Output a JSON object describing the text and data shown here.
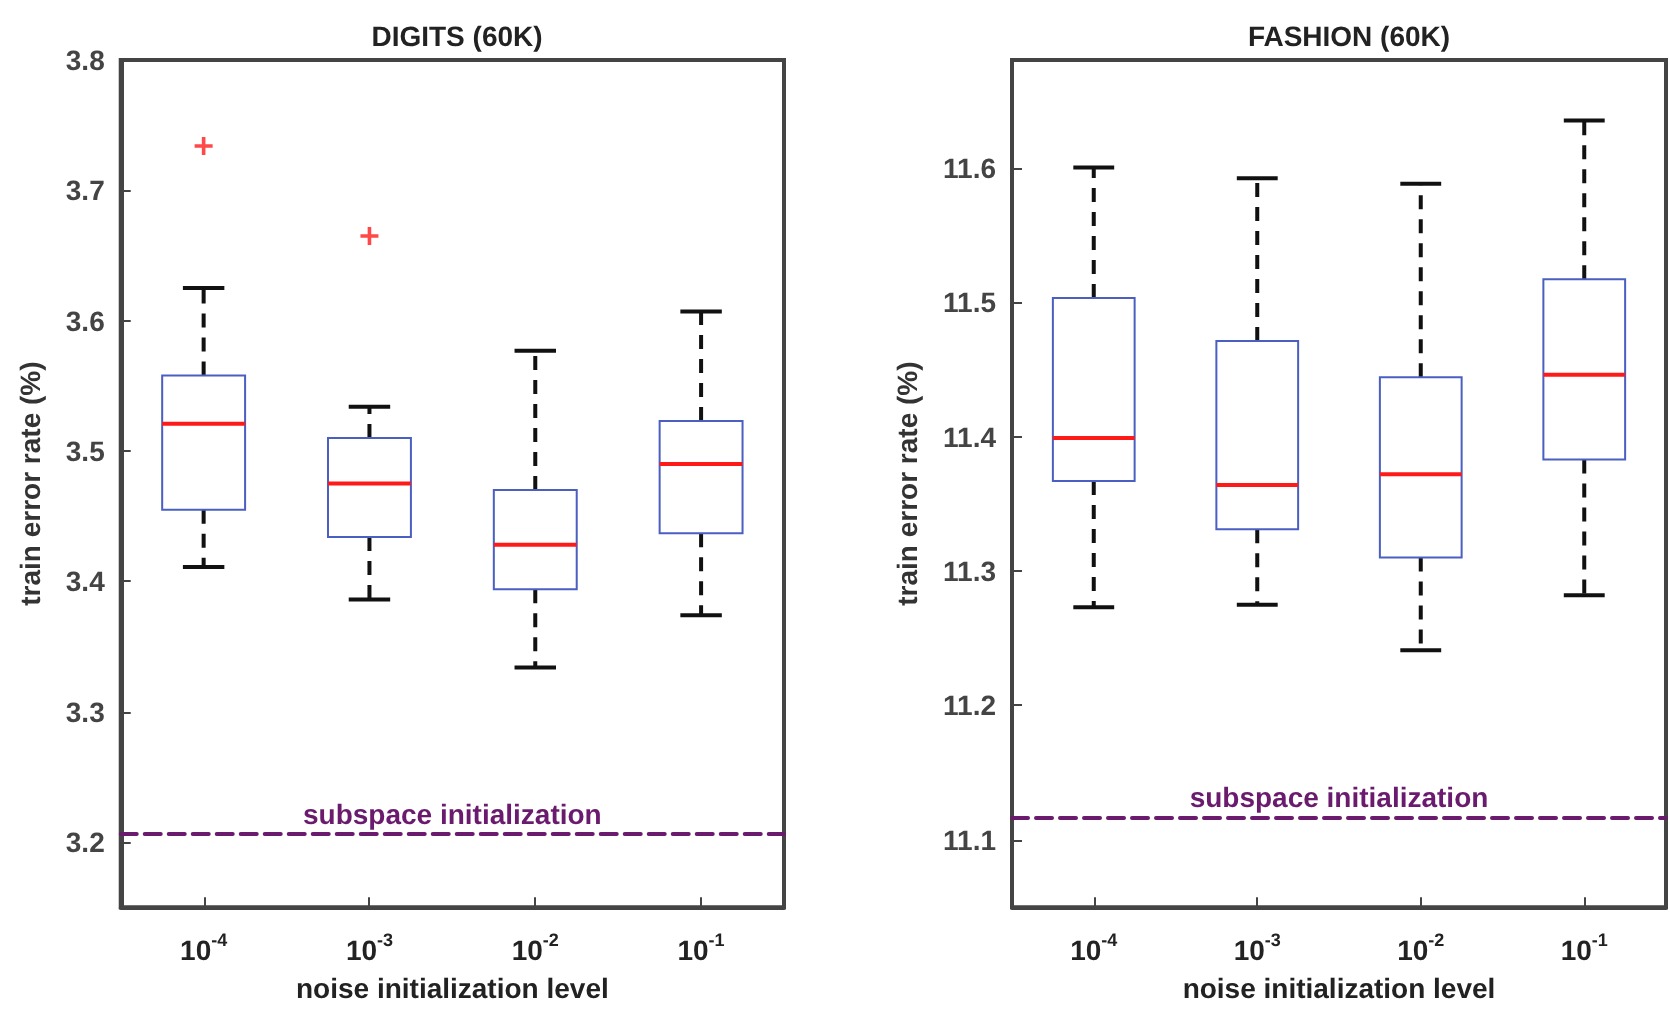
{
  "chart_data": [
    {
      "type": "box",
      "title": "DIGITS (60K)",
      "xlabel": "noise initialization level",
      "ylabel": "train error rate (%)",
      "categories": [
        "10$^{-4}$",
        "10$^{-3}$",
        "10$^{-2}$",
        "10$^{-1}$"
      ],
      "series": [
        {
          "color": "#4a5fc1",
          "boxes": [
            {
              "low": 3.411,
              "q1": 3.455,
              "median": 3.521,
              "q3": 3.558,
              "high": 3.625,
              "outliers": [
                3.734
              ]
            },
            {
              "low": 3.386,
              "q1": 3.434,
              "median": 3.475,
              "q3": 3.51,
              "high": 3.534,
              "outliers": [
                3.665
              ]
            },
            {
              "low": 3.334,
              "q1": 3.394,
              "median": 3.428,
              "q3": 3.47,
              "high": 3.577
            },
            {
              "low": 3.374,
              "q1": 3.437,
              "median": 3.49,
              "q3": 3.523,
              "high": 3.607
            }
          ]
        }
      ],
      "ylim": [
        3.15,
        3.8
      ],
      "yticks": [
        3.2,
        3.3,
        3.4,
        3.5,
        3.6,
        3.7,
        3.8
      ],
      "ref_lines": [
        {
          "axis": "y",
          "value": 3.206,
          "label": "subspace initialization",
          "color": "#6a1b6e",
          "line_style": "dashed"
        }
      ],
      "grid": false
    },
    {
      "type": "box",
      "title": "FASHION (60K)",
      "xlabel": "noise initialization level",
      "ylabel": "train error rate (%)",
      "categories": [
        "10$^{-4}$",
        "10$^{-3}$",
        "10$^{-2}$",
        "10$^{-1}$"
      ],
      "series": [
        {
          "color": "#4a5fc1",
          "boxes": [
            {
              "low": 11.273,
              "q1": 11.367,
              "median": 11.399,
              "q3": 11.503,
              "high": 11.6
            },
            {
              "low": 11.275,
              "q1": 11.331,
              "median": 11.364,
              "q3": 11.471,
              "high": 11.592
            },
            {
              "low": 11.241,
              "q1": 11.31,
              "median": 11.372,
              "q3": 11.444,
              "high": 11.588
            },
            {
              "low": 11.282,
              "q1": 11.383,
              "median": 11.446,
              "q3": 11.517,
              "high": 11.635
            }
          ]
        }
      ],
      "ylim": [
        11.05,
        11.68
      ],
      "yticks": [
        11.1,
        11.2,
        11.3,
        11.4,
        11.5,
        11.6
      ],
      "ref_lines": [
        {
          "axis": "y",
          "value": 11.117,
          "label": "subspace initialization",
          "color": "#6a1b6e",
          "line_style": "dashed"
        }
      ],
      "grid": false
    }
  ]
}
